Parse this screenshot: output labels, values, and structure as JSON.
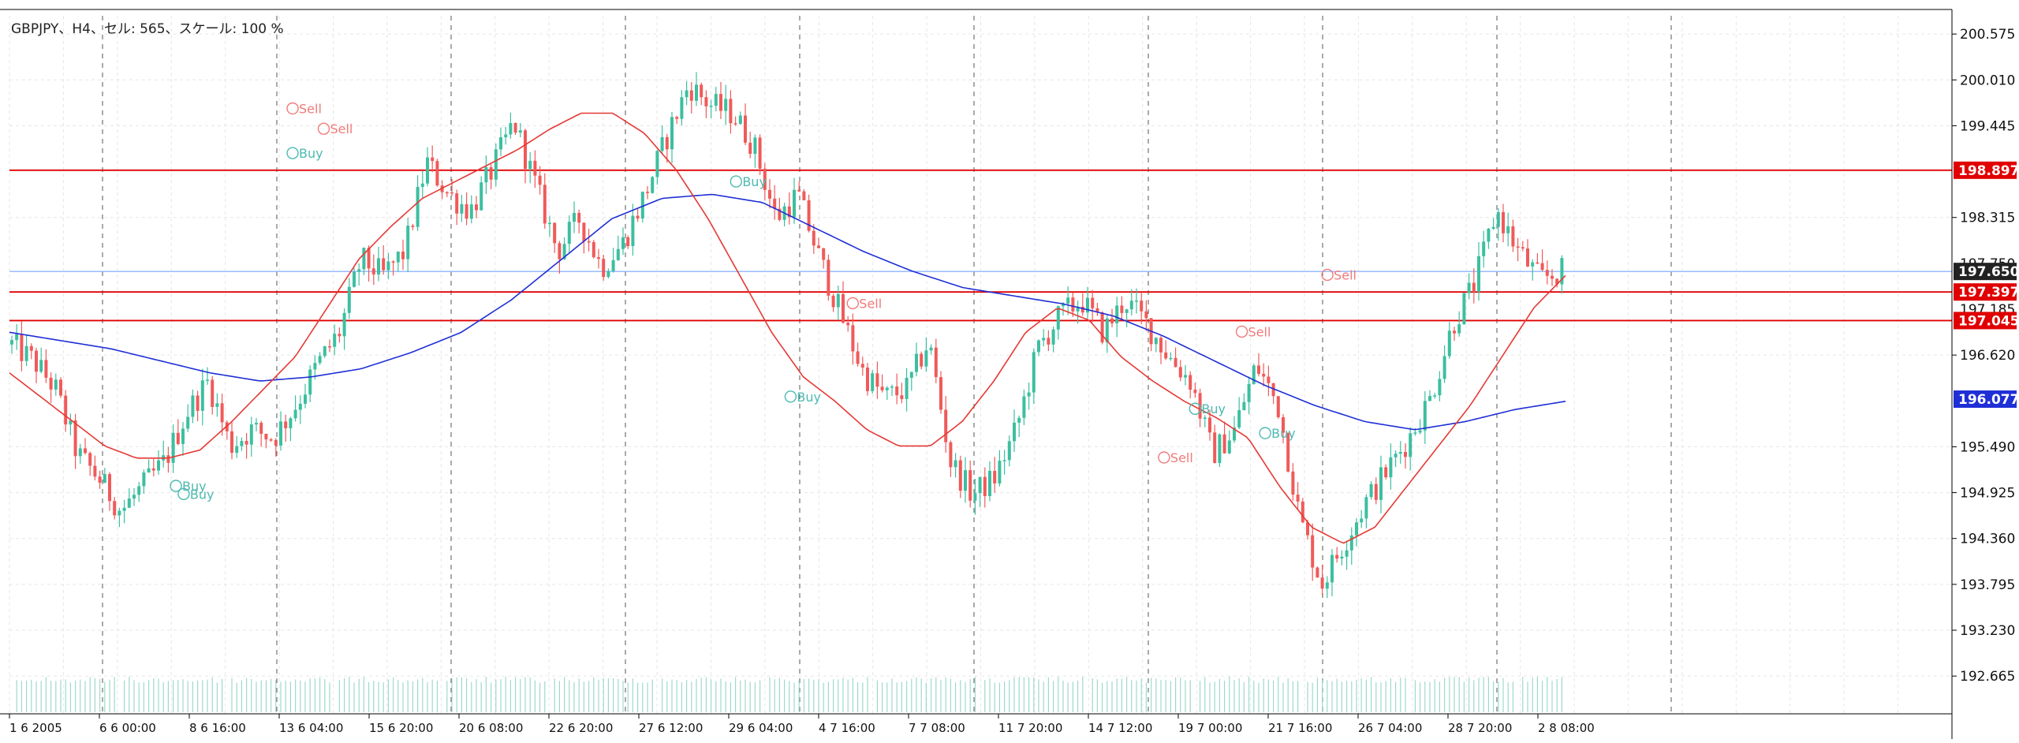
{
  "header": {
    "title": "GBPJPY、H4、セル: 565、スケール: 100 %"
  },
  "colors": {
    "background": "#ffffff",
    "grid": "#e6e6e6",
    "bull": "#3cbfa0",
    "bear": "#f05a5a",
    "ma_fast": "#e53935",
    "ma_slow": "#1f2fd6",
    "hline_red": "#e00000",
    "hline_blue": "#8fb4ff",
    "sell_text": "#f07a7a",
    "buy_text": "#4dbab0",
    "trend_blue": "#2040ff"
  },
  "chart_data": {
    "type": "candlestick",
    "symbol": "GBPJPY",
    "timeframe": "H4",
    "grid": true,
    "ylim": [
      192.2,
      200.8
    ],
    "y_ticks": [
      "200.575",
      "200.010",
      "199.445",
      "198.315",
      "196.620",
      "195.490",
      "194.925",
      "194.360",
      "193.795",
      "193.230",
      "192.665"
    ],
    "x_ticks": [
      "1 6 2005",
      "6 6 00:00",
      "8 6 16:00",
      "13 6 04:00",
      "15 6 20:00",
      "20 6 08:00",
      "22 6 20:00",
      "27 6 12:00",
      "29 6 04:00",
      "4 7 16:00",
      "7 7 08:00",
      "11 7 20:00",
      "14 7 12:00",
      "19 7 00:00",
      "21 7 16:00",
      "26 7 04:00",
      "28 7 20:00",
      "2 8 08:00"
    ],
    "price_labels": [
      {
        "value": 198.897,
        "text": "198.897",
        "kind": "red"
      },
      {
        "value": 197.65,
        "text": "197.650",
        "kind": "dark"
      },
      {
        "value": 197.397,
        "text": "197.397",
        "kind": "red"
      },
      {
        "value": 197.045,
        "text": "197.045",
        "kind": "red"
      },
      {
        "value": 196.077,
        "text": "196.077",
        "kind": "blue"
      }
    ],
    "hidden_labels": [
      "197.750",
      "197.185"
    ],
    "horizontal_lines": [
      {
        "value": 198.897,
        "color": "red"
      },
      {
        "value": 197.65,
        "color": "blue"
      },
      {
        "value": 197.397,
        "color": "red"
      },
      {
        "value": 197.045,
        "color": "red"
      }
    ],
    "close_path": [
      196.75,
      196.55,
      196.2,
      195.4,
      195.1,
      194.7,
      195.0,
      195.3,
      195.9,
      196.3,
      195.5,
      195.7,
      195.6,
      196.0,
      196.5,
      196.9,
      197.8,
      197.6,
      197.9,
      199.0,
      198.6,
      198.4,
      198.9,
      199.5,
      198.7,
      197.9,
      198.3,
      197.7,
      198.0,
      198.6,
      199.3,
      199.95,
      199.7,
      199.6,
      199.2,
      198.3,
      198.6,
      197.8,
      197.1,
      196.4,
      196.1,
      196.2,
      196.8,
      195.3,
      194.9,
      195.1,
      195.7,
      196.7,
      197.1,
      197.3,
      196.9,
      197.3,
      197.0,
      196.6,
      196.3,
      195.4,
      195.7,
      196.5,
      196.0,
      194.6,
      193.8,
      194.3,
      194.8,
      195.2,
      195.6,
      196.1,
      197.0,
      197.5,
      198.4,
      197.9,
      197.55,
      197.65
    ],
    "ma_fast_path": [
      196.4,
      196.1,
      195.8,
      195.5,
      195.35,
      195.35,
      195.45,
      195.8,
      196.2,
      196.6,
      197.2,
      197.8,
      198.2,
      198.55,
      198.75,
      198.95,
      199.15,
      199.4,
      199.6,
      199.6,
      199.35,
      198.9,
      198.3,
      197.6,
      196.9,
      196.35,
      196.05,
      195.7,
      195.5,
      195.5,
      195.8,
      196.3,
      196.9,
      197.2,
      197.05,
      196.6,
      196.3,
      196.05,
      195.85,
      195.6,
      195.0,
      194.5,
      194.3,
      194.5,
      195.0,
      195.5,
      196.0,
      196.6,
      197.2,
      197.6
    ],
    "ma_slow_path": [
      196.9,
      196.8,
      196.7,
      196.55,
      196.4,
      196.3,
      196.35,
      196.45,
      196.65,
      196.9,
      197.3,
      197.8,
      198.3,
      198.55,
      198.6,
      198.5,
      198.2,
      197.9,
      197.65,
      197.45,
      197.35,
      197.25,
      197.1,
      196.85,
      196.55,
      196.25,
      196.0,
      195.8,
      195.7,
      195.8,
      195.95,
      196.05
    ],
    "annotations": [
      {
        "text": "Sell",
        "kind": "sell"
      },
      {
        "text": "Buy",
        "kind": "buy"
      },
      {
        "text": "Sell",
        "kind": "sell"
      },
      {
        "text": "Buy",
        "kind": "buy"
      },
      {
        "text": "Buy",
        "kind": "buy"
      },
      {
        "text": "Sell",
        "kind": "sell"
      },
      {
        "text": "Buy",
        "kind": "buy"
      },
      {
        "text": "Sell",
        "kind": "sell"
      },
      {
        "text": "Buy",
        "kind": "buy"
      },
      {
        "text": "Buy",
        "kind": "buy"
      },
      {
        "text": "Sell",
        "kind": "sell"
      },
      {
        "text": "Sell",
        "kind": "sell"
      },
      {
        "text": "Buy",
        "kind": "buy"
      }
    ]
  }
}
